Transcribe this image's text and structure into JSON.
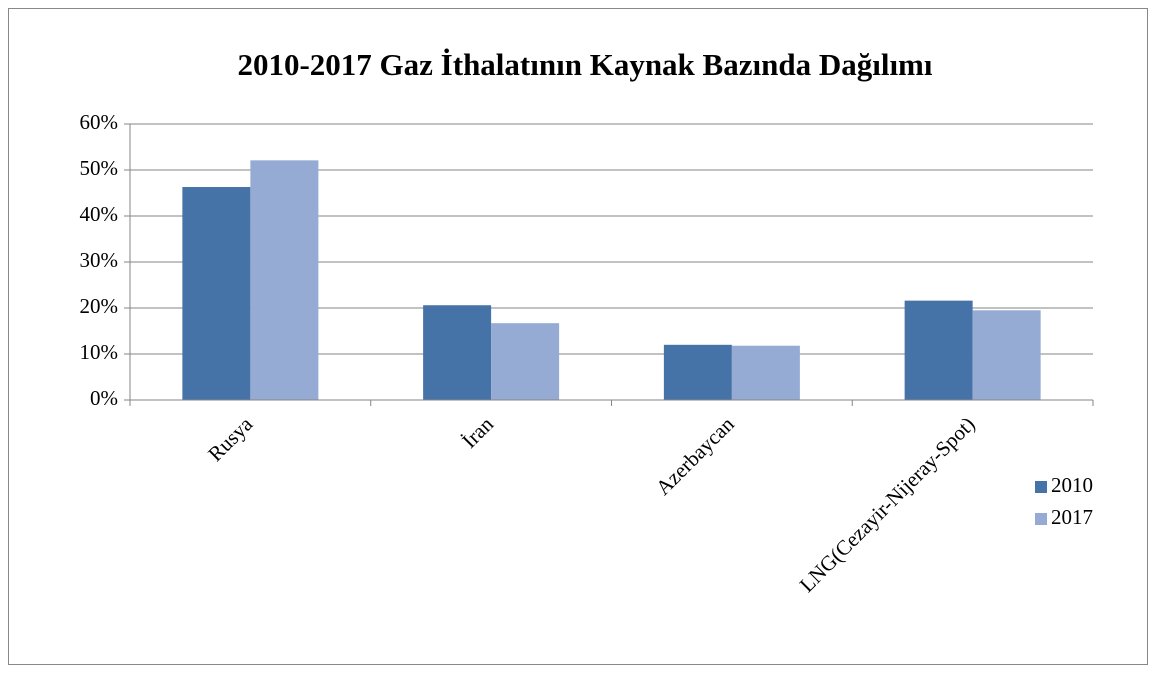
{
  "chart_data": {
    "type": "bar",
    "title": "2010-2017 Gaz İthalatının Kaynak Bazında Dağılımı",
    "categories": [
      "Rusya",
      "İran",
      "Azerbaycan",
      "LNG(Cezayir-Nijeray-Spot)"
    ],
    "series": [
      {
        "name": "2010",
        "color": "#4572a7",
        "values": [
          46.3,
          20.6,
          12.0,
          21.6
        ]
      },
      {
        "name": "2017",
        "color": "#95abd3",
        "values": [
          52.1,
          16.7,
          11.8,
          19.5
        ]
      }
    ],
    "ylim": [
      0,
      60
    ],
    "yticks": [
      {
        "value": 0,
        "label": "0%"
      },
      {
        "value": 10,
        "label": "10%"
      },
      {
        "value": 20,
        "label": "20%"
      },
      {
        "value": 30,
        "label": "30%"
      },
      {
        "value": 40,
        "label": "40%"
      },
      {
        "value": 50,
        "label": "50%"
      },
      {
        "value": 60,
        "label": "60%"
      }
    ],
    "grid": true,
    "legend": "right"
  }
}
